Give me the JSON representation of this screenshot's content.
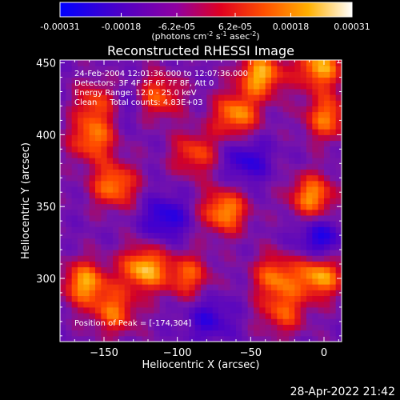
{
  "colorbar": {
    "tick_labels": [
      "-0.00031",
      "-0.00018",
      "-6.2e-05",
      "6.2e-05",
      "0.00018",
      "0.00031"
    ],
    "tick_values": [
      -0.00031,
      -0.00018,
      -6.2e-05,
      6.2e-05,
      0.00018,
      0.00031
    ],
    "range": [
      -0.00031,
      0.00031
    ],
    "units_main": "(photons cm",
    "units_sup1": "-2",
    "units_mid1": " s",
    "units_sup2": "-1",
    "units_mid2": " asec",
    "units_sup3": "-2",
    "units_end": ")"
  },
  "chart_data": {
    "type": "heatmap",
    "title": "Reconstructed RHESSI Image",
    "xlabel": "Heliocentric X (arcsec)",
    "ylabel": "Heliocentric Y (arcsec)",
    "xlim": [
      -180,
      12
    ],
    "ylim": [
      256,
      452
    ],
    "x_ticks": [
      -150,
      -100,
      -50,
      0
    ],
    "x_tick_labels": [
      "−150",
      "−100",
      "−50",
      "0"
    ],
    "y_ticks": [
      300,
      350,
      400,
      450
    ],
    "y_tick_labels": [
      "300",
      "350",
      "400",
      "450"
    ],
    "colormap": [
      "#0000ff",
      "#4b0082",
      "#8b008b",
      "#ff0000",
      "#ffa500",
      "#ffffff"
    ],
    "peak_position": [
      -174,
      304
    ],
    "hot_spots": [
      {
        "x": -125,
        "y": 305,
        "value": 0.00031
      },
      {
        "x": -145,
        "y": 363,
        "value": 0.00026
      },
      {
        "x": -70,
        "y": 345,
        "value": 0.00028
      },
      {
        "x": -62,
        "y": 412,
        "value": 0.00027
      },
      {
        "x": -45,
        "y": 440,
        "value": 0.0003
      },
      {
        "x": -5,
        "y": 445,
        "value": 0.00029
      },
      {
        "x": -10,
        "y": 355,
        "value": 0.00027
      },
      {
        "x": -5,
        "y": 300,
        "value": 0.0003
      },
      {
        "x": -165,
        "y": 295,
        "value": 0.00028
      },
      {
        "x": -160,
        "y": 395,
        "value": 0.00024
      },
      {
        "x": -145,
        "y": 275,
        "value": 0.00022
      },
      {
        "x": -115,
        "y": 425,
        "value": 0.00022
      },
      {
        "x": -90,
        "y": 385,
        "value": 0.0002
      },
      {
        "x": -35,
        "y": 300,
        "value": 0.00023
      },
      {
        "x": -30,
        "y": 275,
        "value": 0.0002
      },
      {
        "x": 0,
        "y": 410,
        "value": 0.00024
      },
      {
        "x": -155,
        "y": 420,
        "value": 0.00023
      },
      {
        "x": -95,
        "y": 300,
        "value": 0.00021
      }
    ],
    "cold_spots": [
      {
        "x": -110,
        "y": 340,
        "value": -0.00018
      },
      {
        "x": -55,
        "y": 380,
        "value": -0.00016
      },
      {
        "x": -5,
        "y": 325,
        "value": -0.00019
      },
      {
        "x": -140,
        "y": 420,
        "value": -0.00012
      },
      {
        "x": -80,
        "y": 270,
        "value": -0.00014
      }
    ]
  },
  "annotations": {
    "line1": "24-Feb-2004 12:01:36.000 to 12:07:36.000",
    "line2": "Detectors: 3F 4F 5F 6F 7F 8F, Att 0",
    "line3": "Energy Range: 12.0 - 25.0 keV",
    "line4": "Clean     Total counts: 4.83E+03",
    "peak": "Position of Peak = [-174,304]"
  },
  "footer": {
    "timestamp": "28-Apr-2022 21:42"
  }
}
